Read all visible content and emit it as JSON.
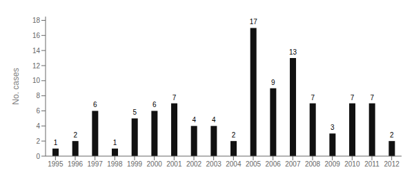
{
  "chart_data": {
    "type": "bar",
    "ylabel": "No. cases",
    "categories": [
      "1995",
      "1996",
      "1997",
      "1998",
      "1999",
      "2000",
      "2001",
      "2002",
      "2003",
      "2004",
      "2005",
      "2006",
      "2007",
      "2008",
      "2009",
      "2010",
      "2011",
      "2012"
    ],
    "values": [
      1,
      2,
      6,
      1,
      5,
      6,
      7,
      4,
      4,
      2,
      17,
      9,
      13,
      7,
      3,
      7,
      7,
      2
    ],
    "color": "#111111",
    "ylim": [
      0,
      18.5
    ],
    "yticks": [
      0,
      2,
      4,
      6,
      8,
      10,
      12,
      14,
      16,
      18
    ],
    "grid": false,
    "data_labels": true
  }
}
